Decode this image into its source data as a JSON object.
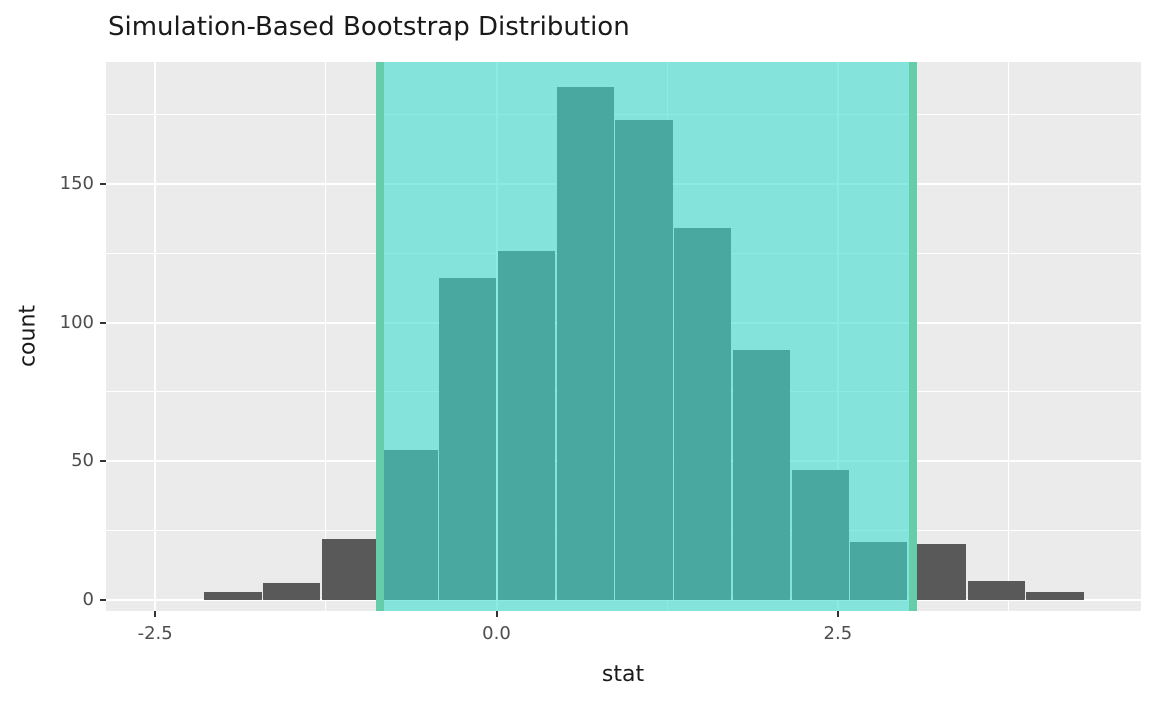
{
  "chart_data": {
    "type": "bar",
    "subtype": "histogram",
    "title": "Simulation-Based Bootstrap Distribution",
    "xlabel": "stat",
    "ylabel": "count",
    "xlim": [
      -2.86,
      4.72
    ],
    "ylim": [
      -4,
      194
    ],
    "x_ticks": [
      -2.5,
      0.0,
      2.5
    ],
    "x_tick_labels": [
      "-2.5",
      "0.0",
      "2.5"
    ],
    "x_minor_ticks": [
      -1.25,
      1.25,
      3.75
    ],
    "y_ticks": [
      0,
      50,
      100,
      150
    ],
    "y_tick_labels": [
      "0",
      "50",
      "100",
      "150"
    ],
    "y_minor_ticks": [
      25,
      75,
      125,
      175
    ],
    "bin_width": 0.43,
    "bars": [
      {
        "x0": -2.145,
        "height": 3
      },
      {
        "x0": -1.715,
        "height": 6
      },
      {
        "x0": -1.285,
        "height": 22
      },
      {
        "x0": -0.855,
        "height": 54
      },
      {
        "x0": -0.425,
        "height": 116
      },
      {
        "x0": 0.005,
        "height": 126
      },
      {
        "x0": 0.435,
        "height": 185
      },
      {
        "x0": 0.865,
        "height": 173
      },
      {
        "x0": 1.295,
        "height": 134
      },
      {
        "x0": 1.725,
        "height": 90
      },
      {
        "x0": 2.155,
        "height": 47
      },
      {
        "x0": 2.585,
        "height": 21
      },
      {
        "x0": 3.015,
        "height": 20
      },
      {
        "x0": 3.445,
        "height": 7
      },
      {
        "x0": 3.875,
        "height": 3
      }
    ],
    "confidence_interval": {
      "lower": -0.855,
      "upper": 3.05
    },
    "legend": "none",
    "grid": "on",
    "colors": {
      "page_bg": "#FFFFFF",
      "panel_bg": "#EBEBEB",
      "grid": "#FFFFFF",
      "bar_fill": "#595959",
      "shade_fill": "#40E0D0",
      "shade_alpha": 0.6,
      "ci_line": "#66CDAA",
      "tick_label": "#4D4D4D",
      "text": "#1A1A1A"
    }
  }
}
